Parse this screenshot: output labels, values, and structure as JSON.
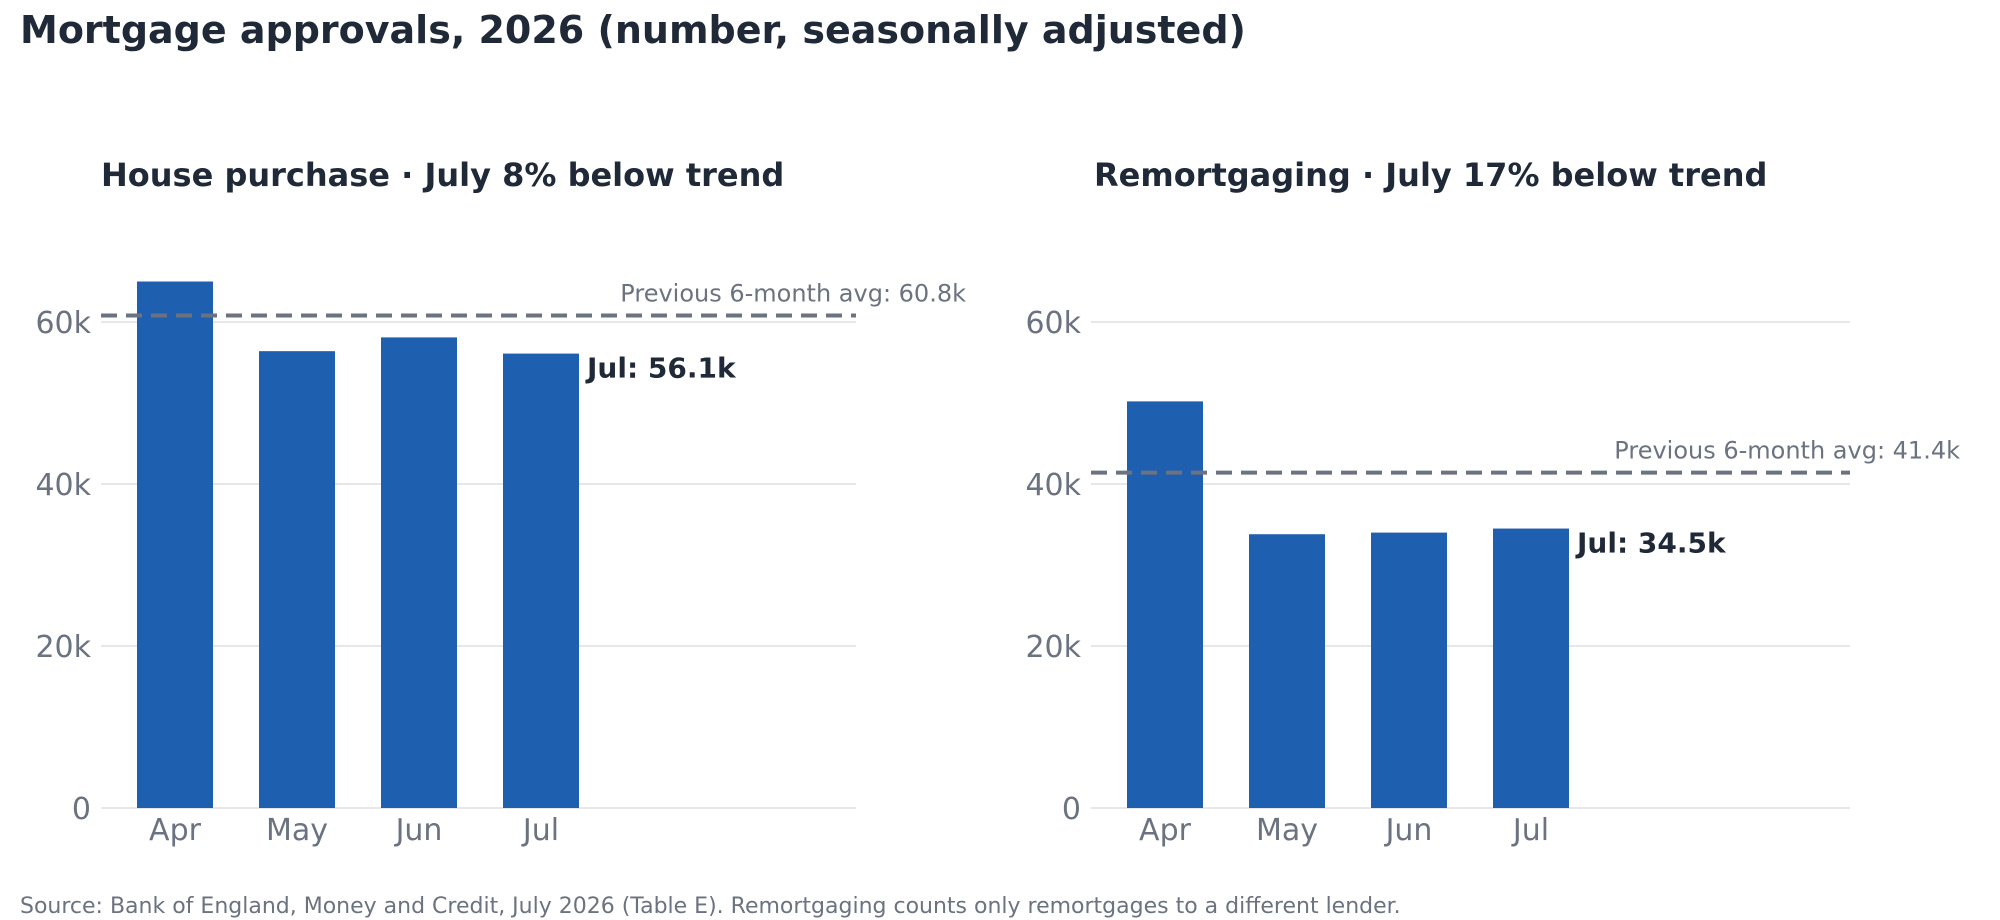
{
  "title": "Mortgage approvals, 2026 (number, seasonally adjusted)",
  "source": "Source: Bank of England, Money and Credit, July 2026 (Table E). Remortgaging counts only remortgages to a different lender.",
  "colors": {
    "bar": "#1f5faf",
    "grid": "#e5e7eb",
    "avg_line": "#6b7280",
    "text": "#1f2937",
    "muted": "#6b7280"
  },
  "chart_data": [
    {
      "type": "bar",
      "title": "House purchase  ·  July 8% below trend",
      "categories": [
        "Apr",
        "May",
        "Jun",
        "Jul"
      ],
      "values": [
        65.0,
        56.4,
        58.1,
        56.1
      ],
      "value_unit": "thousands",
      "ylim": [
        0,
        70
      ],
      "yticks": [
        0,
        20,
        40,
        60
      ],
      "ytick_labels": [
        "0",
        "20k",
        "40k",
        "60k"
      ],
      "grid": true,
      "reference_line": {
        "value": 60.8,
        "label": "Previous 6-month avg: 60.8k"
      },
      "annotation": {
        "category": "Jul",
        "value": 56.1,
        "label": "Jul: 56.1k"
      }
    },
    {
      "type": "bar",
      "title": "Remortgaging  ·  July 17% below trend",
      "categories": [
        "Apr",
        "May",
        "Jun",
        "Jul"
      ],
      "values": [
        50.2,
        33.8,
        34.0,
        34.5
      ],
      "value_unit": "thousands",
      "ylim": [
        0,
        70
      ],
      "yticks": [
        0,
        20,
        40,
        60
      ],
      "ytick_labels": [
        "0",
        "20k",
        "40k",
        "60k"
      ],
      "grid": true,
      "reference_line": {
        "value": 41.4,
        "label": "Previous 6-month avg: 41.4k"
      },
      "annotation": {
        "category": "Jul",
        "value": 34.5,
        "label": "Jul: 34.5k"
      }
    }
  ]
}
